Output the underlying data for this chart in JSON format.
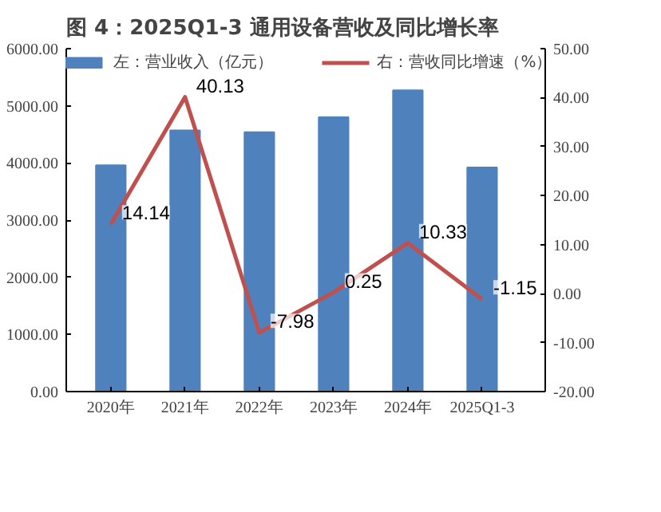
{
  "chart_data": {
    "type": "bar",
    "title": "图 4：2025Q1-3 通用设备营收及同比增长率",
    "categories": [
      "2020年",
      "2021年",
      "2022年",
      "2023年",
      "2024年",
      "2025Q1-3"
    ],
    "series": [
      {
        "name": "左：营业收入（亿元）",
        "color": "#4f81bd",
        "values": [
          3960,
          4570,
          4540,
          4800,
          5270,
          3920
        ]
      },
      {
        "name": "右：营收同比增速（%）",
        "type": "line",
        "axis": "y2",
        "color": "#c0504d",
        "values": [
          14.14,
          40.13,
          -7.98,
          0.25,
          10.33,
          -1.15
        ],
        "value_labels": [
          "14.14",
          "40.13",
          "-7.98",
          "0.25",
          "10.33",
          "-1.15"
        ]
      }
    ],
    "ylim": [
      0,
      6000
    ],
    "yticks": [
      {
        "value": 0,
        "label": "0.00"
      },
      {
        "value": 1000,
        "label": "1000.00"
      },
      {
        "value": 2000,
        "label": "2000.00"
      },
      {
        "value": 3000,
        "label": "3000.00"
      },
      {
        "value": 4000,
        "label": "4000.00"
      },
      {
        "value": 5000,
        "label": "5000.00"
      },
      {
        "value": 6000,
        "label": "6000.00"
      }
    ],
    "y2lim": [
      -20,
      50
    ],
    "y2ticks": [
      {
        "value": -20,
        "label": "-20.00"
      },
      {
        "value": -10,
        "label": "-10.00"
      },
      {
        "value": 0,
        "label": "0.00"
      },
      {
        "value": 10,
        "label": "10.00"
      },
      {
        "value": 20,
        "label": "20.00"
      },
      {
        "value": 30,
        "label": "30.00"
      },
      {
        "value": 40,
        "label": "40.00"
      },
      {
        "value": 50,
        "label": "50.00"
      }
    ],
    "legend": "top",
    "grid": false,
    "marker": "none",
    "line_style": "solid"
  }
}
